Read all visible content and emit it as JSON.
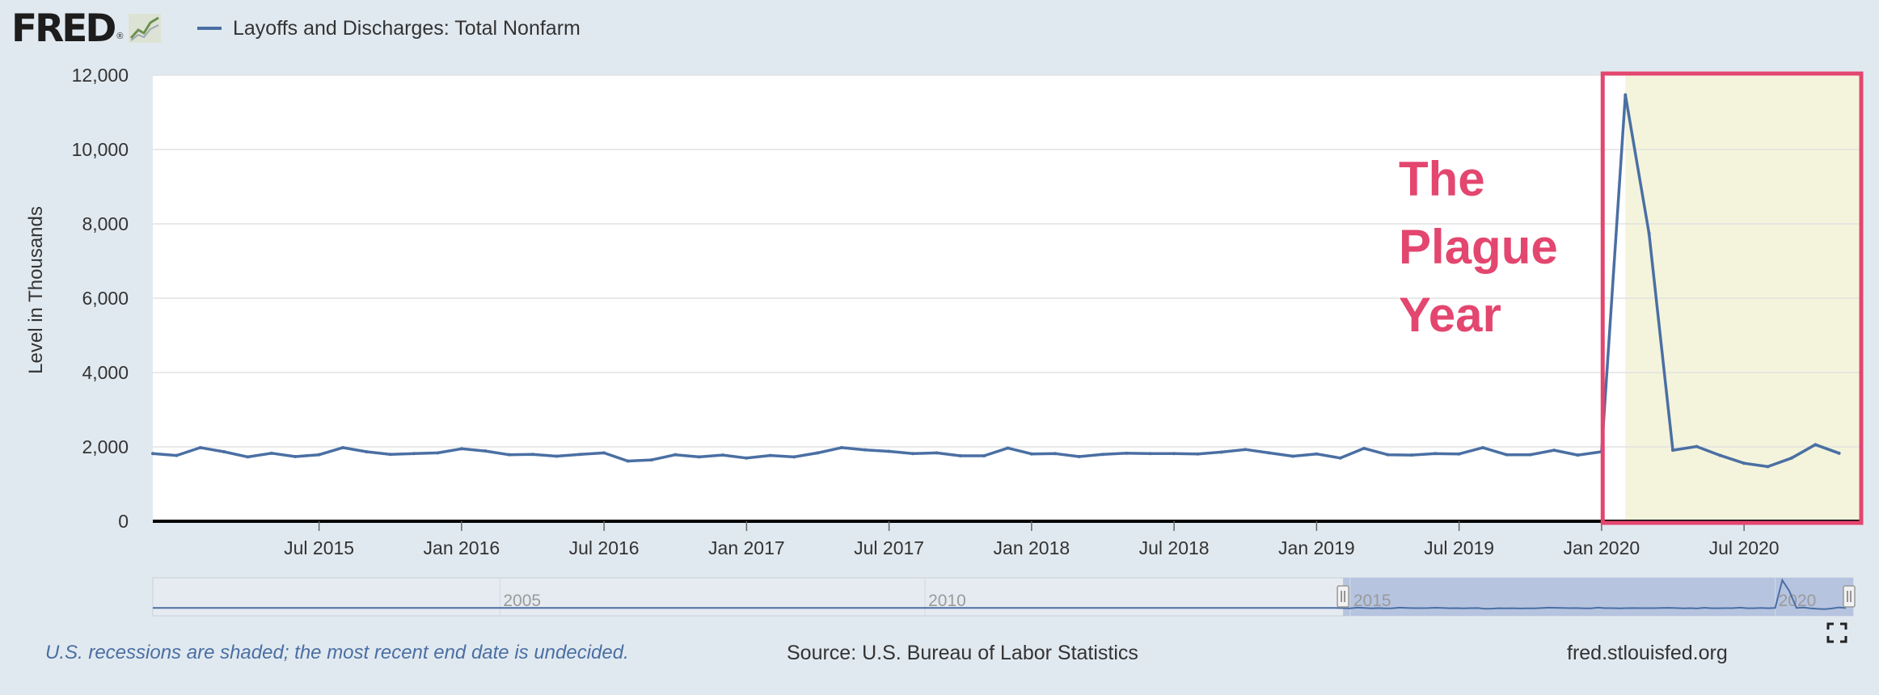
{
  "header": {
    "logo_text": "FRED",
    "logo_mark": "®",
    "logo_icon": "line-graph-icon",
    "series_label": "Layoffs and Discharges: Total Nonfarm"
  },
  "colors": {
    "series": "#4a6fa3",
    "recession": "#f4f4dc",
    "highlight": "#e3466f",
    "plot_bg": "#ffffff",
    "page_bg": "#e1e9f0"
  },
  "chart_data": {
    "type": "line",
    "title": "",
    "ylabel": "Level in Thousands",
    "ylim": [
      0,
      12000
    ],
    "yticks": [
      0,
      2000,
      4000,
      6000,
      8000,
      10000,
      12000
    ],
    "ytick_labels": [
      "0",
      "2,000",
      "4,000",
      "6,000",
      "8,000",
      "10,000",
      "12,000"
    ],
    "x_range": [
      "2014-12",
      "2020-12"
    ],
    "xticks": [
      "2015-07",
      "2016-01",
      "2016-07",
      "2017-01",
      "2017-07",
      "2018-01",
      "2018-07",
      "2019-01",
      "2019-07",
      "2020-01",
      "2020-07"
    ],
    "xtick_labels": [
      "Jul 2015",
      "Jan 2016",
      "Jul 2016",
      "Jan 2017",
      "Jul 2017",
      "Jan 2018",
      "Jul 2018",
      "Jan 2019",
      "Jul 2019",
      "Jan 2020",
      "Jul 2020"
    ],
    "grid": "horizontal",
    "series": [
      {
        "name": "Layoffs and Discharges: Total Nonfarm",
        "start": "2014-12",
        "frequency": "monthly",
        "values": [
          1820,
          1770,
          1980,
          1870,
          1730,
          1830,
          1740,
          1790,
          1980,
          1870,
          1800,
          1820,
          1840,
          1950,
          1890,
          1790,
          1800,
          1750,
          1800,
          1840,
          1620,
          1650,
          1790,
          1730,
          1780,
          1700,
          1770,
          1730,
          1840,
          1980,
          1920,
          1880,
          1820,
          1840,
          1760,
          1760,
          1970,
          1810,
          1820,
          1740,
          1800,
          1830,
          1820,
          1820,
          1810,
          1860,
          1930,
          1840,
          1750,
          1810,
          1700,
          1960,
          1790,
          1780,
          1820,
          1810,
          1980,
          1790,
          1790,
          1910,
          1780,
          1870,
          11470,
          7740,
          1910,
          2010,
          1770,
          1560,
          1470,
          1700,
          2060,
          1830
        ]
      }
    ],
    "recession_shading": [
      {
        "start": "2020-02",
        "end": "2020-12"
      }
    ],
    "annotation": {
      "lines": [
        "The",
        "Plague",
        "Year"
      ],
      "box_start": "2020-02",
      "box_end": "2020-12"
    },
    "navigator": {
      "labels": [
        "2005",
        "2010",
        "2015",
        "2020"
      ],
      "range": [
        "2000-12",
        "2020-12"
      ],
      "selected": [
        "2014-12",
        "2020-12"
      ]
    }
  },
  "footer": {
    "note": "U.S. recessions are shaded; the most recent end date is undecided.",
    "source": "Source: U.S. Bureau of Labor Statistics",
    "site": "fred.stlouisfed.org",
    "fullscreen_icon": "fullscreen-icon"
  }
}
